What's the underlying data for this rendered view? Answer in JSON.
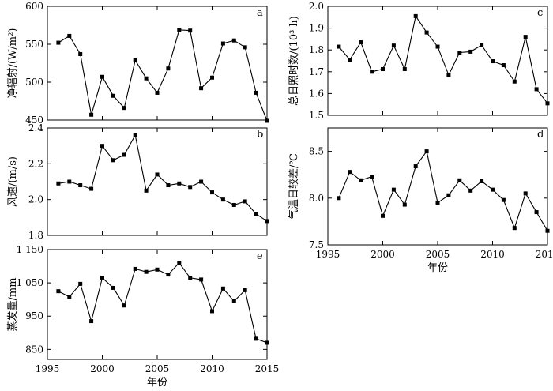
{
  "chart_data": [
    {
      "type": "line",
      "panel": "a",
      "ylabel": "净辐射/(W/m²)",
      "xlabel": "",
      "xlim": [
        1995,
        2015
      ],
      "ylim": [
        450,
        600
      ],
      "yticks": [
        450,
        500,
        550,
        600
      ],
      "xticks": [],
      "x": [
        1996,
        1997,
        1998,
        1999,
        2000,
        2001,
        2002,
        2003,
        2004,
        2005,
        2006,
        2007,
        2008,
        2009,
        2010,
        2011,
        2012,
        2013,
        2014,
        2015
      ],
      "values": [
        552,
        561,
        537,
        457,
        507,
        482,
        466,
        529,
        505,
        486,
        518,
        569,
        568,
        492,
        506,
        551,
        555,
        546,
        486,
        449
      ]
    },
    {
      "type": "line",
      "panel": "c",
      "ylabel": "总日照时数/(10³ h)",
      "xlabel": "",
      "xlim": [
        1995,
        2015
      ],
      "ylim": [
        1.5,
        2.0
      ],
      "yticks": [
        "1.5",
        "1.6",
        "1.7",
        "1.8",
        "1.9",
        "2.0"
      ],
      "xticks": [],
      "x": [
        1996,
        1997,
        1998,
        1999,
        2000,
        2001,
        2002,
        2003,
        2004,
        2005,
        2006,
        2007,
        2008,
        2009,
        2010,
        2011,
        2012,
        2013,
        2014,
        2015
      ],
      "values": [
        1.815,
        1.755,
        1.835,
        1.7,
        1.712,
        1.82,
        1.712,
        1.955,
        1.88,
        1.815,
        1.685,
        1.788,
        1.792,
        1.822,
        1.748,
        1.73,
        1.655,
        1.86,
        1.62,
        1.555
      ]
    },
    {
      "type": "line",
      "panel": "b",
      "ylabel": "风速/(m/s)",
      "xlabel": "",
      "xlim": [
        1995,
        2015
      ],
      "ylim": [
        1.8,
        2.4
      ],
      "yticks": [
        "1.8",
        "2.0",
        "2.2",
        "2.4"
      ],
      "xticks": [],
      "x": [
        1996,
        1997,
        1998,
        1999,
        2000,
        2001,
        2002,
        2003,
        2004,
        2005,
        2006,
        2007,
        2008,
        2009,
        2010,
        2011,
        2012,
        2013,
        2014,
        2015
      ],
      "values": [
        2.09,
        2.1,
        2.08,
        2.06,
        2.3,
        2.22,
        2.25,
        2.36,
        2.05,
        2.14,
        2.08,
        2.09,
        2.07,
        2.1,
        2.04,
        2.0,
        1.97,
        1.99,
        1.92,
        1.88
      ]
    },
    {
      "type": "line",
      "panel": "d",
      "ylabel": "气温日较差/℃",
      "xlabel": "年份",
      "xlim": [
        1995,
        2015
      ],
      "ylim": [
        7.5,
        8.75
      ],
      "yticks": [
        "7.5",
        "8.0",
        "8.5"
      ],
      "xticks": [
        "1995",
        "2000",
        "2005",
        "2010",
        "2015"
      ],
      "x": [
        1996,
        1997,
        1998,
        1999,
        2000,
        2001,
        2002,
        2003,
        2004,
        2005,
        2006,
        2007,
        2008,
        2009,
        2010,
        2011,
        2012,
        2013,
        2014,
        2015
      ],
      "values": [
        8.0,
        8.28,
        8.19,
        8.23,
        7.81,
        8.09,
        7.93,
        8.34,
        8.5,
        7.95,
        8.03,
        8.19,
        8.08,
        8.18,
        8.09,
        7.98,
        7.68,
        8.05,
        7.85,
        7.65
      ]
    },
    {
      "type": "line",
      "panel": "e",
      "ylabel": "蒸发量/mm",
      "xlabel": "年份",
      "xlim": [
        1995,
        2015
      ],
      "ylim": [
        820,
        1150
      ],
      "yticks": [
        "850",
        "950",
        "1 050",
        "1 150"
      ],
      "xticks": [
        "1995",
        "2000",
        "2005",
        "2010",
        "2015"
      ],
      "x": [
        1996,
        1997,
        1998,
        1999,
        2000,
        2001,
        2002,
        2003,
        2004,
        2005,
        2006,
        2007,
        2008,
        2009,
        2010,
        2011,
        2012,
        2013,
        2014,
        2015
      ],
      "values": [
        1025,
        1008,
        1047,
        935,
        1065,
        1035,
        982,
        1092,
        1083,
        1090,
        1075,
        1110,
        1065,
        1060,
        965,
        1033,
        995,
        1028,
        882,
        870
      ]
    }
  ]
}
